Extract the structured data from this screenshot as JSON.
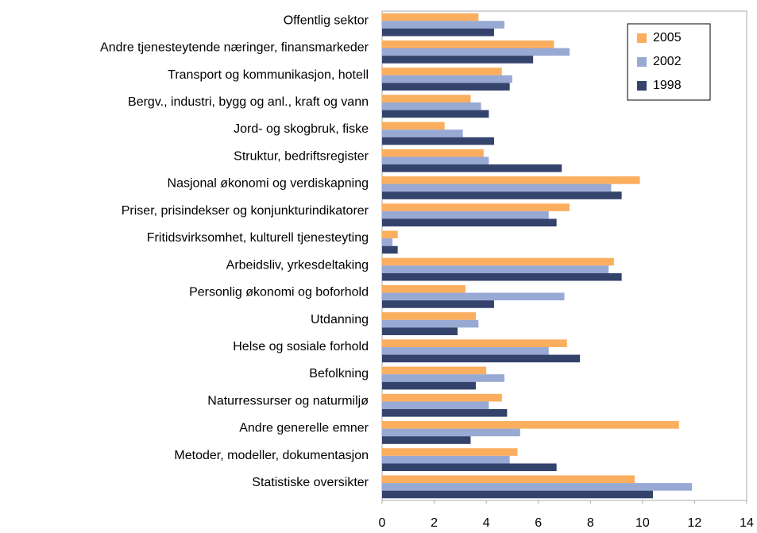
{
  "chart_data": {
    "type": "hbar",
    "categories": [
      "Offentlig sektor",
      "Andre tjenesteytende næringer,  finansmarkeder",
      "Transport og kommunikasjon, hotell",
      "Bergv., industri, bygg og anl., kraft og vann",
      "Jord- og skogbruk, fiske",
      "Struktur, bedriftsregister",
      "Nasjonal økonomi og verdiskapning",
      "Priser, prisindekser og konjunkturindikatorer",
      "Fritidsvirksomhet, kulturell tjenesteyting",
      "Arbeidsliv, yrkesdeltaking",
      "Personlig økonomi og boforhold",
      "Utdanning",
      "Helse og sosiale forhold",
      "Befolkning",
      "Naturressurser og naturmiljø",
      "Andre generelle emner",
      "Metoder, modeller, dokumentasjon",
      "Statistiske oversikter"
    ],
    "series": [
      {
        "name": "2005",
        "color": "#fbae5e",
        "values": [
          3.7,
          6.6,
          4.6,
          3.4,
          2.4,
          3.9,
          9.9,
          7.2,
          0.6,
          8.9,
          3.2,
          3.6,
          7.1,
          4.0,
          4.6,
          11.4,
          5.2,
          9.7
        ]
      },
      {
        "name": "2002",
        "color": "#98a9d4",
        "values": [
          4.7,
          7.2,
          5.0,
          3.8,
          3.1,
          4.1,
          8.8,
          6.4,
          0.4,
          8.7,
          7.0,
          3.7,
          6.4,
          4.7,
          4.1,
          5.3,
          4.9,
          11.9
        ]
      },
      {
        "name": "1998",
        "color": "#34436b",
        "values": [
          4.3,
          5.8,
          4.9,
          4.1,
          4.3,
          6.9,
          9.2,
          6.7,
          0.6,
          9.2,
          4.3,
          2.9,
          7.6,
          3.6,
          4.8,
          3.4,
          6.7,
          10.4
        ]
      }
    ],
    "xlim": [
      0,
      14
    ],
    "xticks": [
      0,
      2,
      4,
      6,
      8,
      10,
      12,
      14
    ],
    "legend": "top-right"
  }
}
